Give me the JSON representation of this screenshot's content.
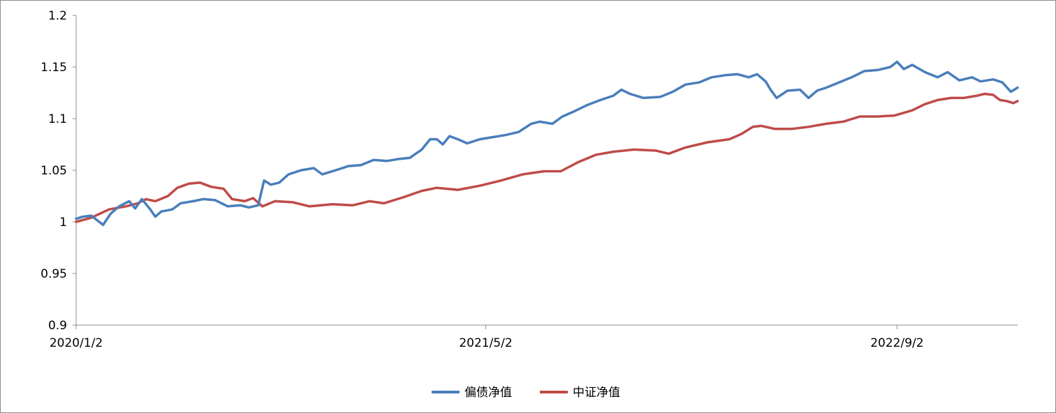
{
  "chart_data": {
    "type": "line",
    "title": "",
    "xlabel": "",
    "ylabel": "",
    "ylim": [
      0.9,
      1.2
    ],
    "y_ticks": [
      "1.2",
      "1.15",
      "1.1",
      "1.05",
      "1",
      "0.95",
      "0.9"
    ],
    "y_tick_values": [
      1.2,
      1.15,
      1.1,
      1.05,
      1.0,
      0.95,
      0.9
    ],
    "x_range": [
      "2020-01-02",
      "2023-01-23"
    ],
    "x_ticks": [
      "2020/1/2",
      "2021/5/2",
      "2022/9/2"
    ],
    "x_tick_dates": [
      "2020-01-02",
      "2021-05-02",
      "2022-09-02"
    ],
    "grid": false,
    "legend_position": "bottom-center",
    "series": [
      {
        "name": "偏债净值",
        "color": "#4a7ebb",
        "points": [
          [
            "2020-01-02",
            1.003
          ],
          [
            "2020-01-10",
            1.005
          ],
          [
            "2020-01-20",
            1.006
          ],
          [
            "2020-02-03",
            0.997
          ],
          [
            "2020-02-12",
            1.008
          ],
          [
            "2020-02-22",
            1.015
          ],
          [
            "2020-03-05",
            1.02
          ],
          [
            "2020-03-12",
            1.013
          ],
          [
            "2020-03-20",
            1.022
          ],
          [
            "2020-03-30",
            1.012
          ],
          [
            "2020-04-05",
            1.005
          ],
          [
            "2020-04-12",
            1.01
          ],
          [
            "2020-04-25",
            1.012
          ],
          [
            "2020-05-05",
            1.018
          ],
          [
            "2020-05-20",
            1.02
          ],
          [
            "2020-06-01",
            1.022
          ],
          [
            "2020-06-15",
            1.021
          ],
          [
            "2020-06-30",
            1.015
          ],
          [
            "2020-07-15",
            1.016
          ],
          [
            "2020-07-25",
            1.014
          ],
          [
            "2020-08-05",
            1.016
          ],
          [
            "2020-08-12",
            1.04
          ],
          [
            "2020-08-20",
            1.036
          ],
          [
            "2020-08-30",
            1.038
          ],
          [
            "2020-09-10",
            1.046
          ],
          [
            "2020-09-25",
            1.05
          ],
          [
            "2020-10-10",
            1.052
          ],
          [
            "2020-10-20",
            1.046
          ],
          [
            "2020-11-05",
            1.05
          ],
          [
            "2020-11-20",
            1.054
          ],
          [
            "2020-12-05",
            1.055
          ],
          [
            "2020-12-20",
            1.06
          ],
          [
            "2021-01-05",
            1.059
          ],
          [
            "2021-01-20",
            1.061
          ],
          [
            "2021-02-01",
            1.062
          ],
          [
            "2021-02-15",
            1.07
          ],
          [
            "2021-02-25",
            1.08
          ],
          [
            "2021-03-05",
            1.08
          ],
          [
            "2021-03-12",
            1.075
          ],
          [
            "2021-03-20",
            1.083
          ],
          [
            "2021-03-30",
            1.08
          ],
          [
            "2021-04-10",
            1.076
          ],
          [
            "2021-04-25",
            1.08
          ],
          [
            "2021-05-10",
            1.082
          ],
          [
            "2021-05-25",
            1.084
          ],
          [
            "2021-06-10",
            1.087
          ],
          [
            "2021-06-25",
            1.095
          ],
          [
            "2021-07-05",
            1.097
          ],
          [
            "2021-07-20",
            1.095
          ],
          [
            "2021-08-01",
            1.102
          ],
          [
            "2021-08-15",
            1.107
          ],
          [
            "2021-08-30",
            1.113
          ],
          [
            "2021-09-15",
            1.118
          ],
          [
            "2021-09-30",
            1.122
          ],
          [
            "2021-10-10",
            1.128
          ],
          [
            "2021-10-20",
            1.124
          ],
          [
            "2021-11-05",
            1.12
          ],
          [
            "2021-11-25",
            1.121
          ],
          [
            "2021-12-10",
            1.126
          ],
          [
            "2021-12-25",
            1.133
          ],
          [
            "2022-01-10",
            1.135
          ],
          [
            "2022-01-25",
            1.14
          ],
          [
            "2022-02-10",
            1.142
          ],
          [
            "2022-02-25",
            1.143
          ],
          [
            "2022-03-10",
            1.14
          ],
          [
            "2022-03-20",
            1.143
          ],
          [
            "2022-03-30",
            1.136
          ],
          [
            "2022-04-05",
            1.128
          ],
          [
            "2022-04-12",
            1.12
          ],
          [
            "2022-04-25",
            1.127
          ],
          [
            "2022-05-10",
            1.128
          ],
          [
            "2022-05-20",
            1.12
          ],
          [
            "2022-05-30",
            1.127
          ],
          [
            "2022-06-10",
            1.13
          ],
          [
            "2022-06-25",
            1.135
          ],
          [
            "2022-07-10",
            1.14
          ],
          [
            "2022-07-25",
            1.146
          ],
          [
            "2022-08-10",
            1.147
          ],
          [
            "2022-08-25",
            1.15
          ],
          [
            "2022-09-02",
            1.155
          ],
          [
            "2022-09-10",
            1.148
          ],
          [
            "2022-09-20",
            1.152
          ],
          [
            "2022-10-05",
            1.145
          ],
          [
            "2022-10-20",
            1.14
          ],
          [
            "2022-11-01",
            1.145
          ],
          [
            "2022-11-15",
            1.137
          ],
          [
            "2022-11-30",
            1.14
          ],
          [
            "2022-12-10",
            1.136
          ],
          [
            "2022-12-25",
            1.138
          ],
          [
            "2023-01-05",
            1.135
          ],
          [
            "2023-01-15",
            1.126
          ],
          [
            "2023-01-23",
            1.13
          ]
        ]
      },
      {
        "name": "中证净值",
        "color": "#be4b48",
        "points": [
          [
            "2020-01-02",
            1.0
          ],
          [
            "2020-01-20",
            1.004
          ],
          [
            "2020-02-10",
            1.012
          ],
          [
            "2020-03-01",
            1.015
          ],
          [
            "2020-03-15",
            1.018
          ],
          [
            "2020-03-25",
            1.022
          ],
          [
            "2020-04-05",
            1.02
          ],
          [
            "2020-04-20",
            1.025
          ],
          [
            "2020-05-01",
            1.033
          ],
          [
            "2020-05-15",
            1.037
          ],
          [
            "2020-05-28",
            1.038
          ],
          [
            "2020-06-10",
            1.034
          ],
          [
            "2020-06-25",
            1.032
          ],
          [
            "2020-07-05",
            1.022
          ],
          [
            "2020-07-20",
            1.02
          ],
          [
            "2020-07-30",
            1.023
          ],
          [
            "2020-08-10",
            1.015
          ],
          [
            "2020-08-25",
            1.02
          ],
          [
            "2020-09-15",
            1.019
          ],
          [
            "2020-10-05",
            1.015
          ],
          [
            "2020-11-01",
            1.017
          ],
          [
            "2020-11-25",
            1.016
          ],
          [
            "2020-12-15",
            1.02
          ],
          [
            "2021-01-01",
            1.018
          ],
          [
            "2021-01-25",
            1.024
          ],
          [
            "2021-02-15",
            1.03
          ],
          [
            "2021-03-05",
            1.033
          ],
          [
            "2021-03-30",
            1.031
          ],
          [
            "2021-04-25",
            1.035
          ],
          [
            "2021-05-20",
            1.04
          ],
          [
            "2021-06-15",
            1.046
          ],
          [
            "2021-07-10",
            1.049
          ],
          [
            "2021-07-30",
            1.049
          ],
          [
            "2021-08-20",
            1.058
          ],
          [
            "2021-09-10",
            1.065
          ],
          [
            "2021-10-01",
            1.068
          ],
          [
            "2021-10-25",
            1.07
          ],
          [
            "2021-11-20",
            1.069
          ],
          [
            "2021-12-05",
            1.066
          ],
          [
            "2021-12-25",
            1.072
          ],
          [
            "2022-01-20",
            1.077
          ],
          [
            "2022-02-15",
            1.08
          ],
          [
            "2022-03-01",
            1.085
          ],
          [
            "2022-03-15",
            1.092
          ],
          [
            "2022-03-25",
            1.093
          ],
          [
            "2022-04-10",
            1.09
          ],
          [
            "2022-04-30",
            1.09
          ],
          [
            "2022-05-20",
            1.092
          ],
          [
            "2022-06-10",
            1.095
          ],
          [
            "2022-06-30",
            1.097
          ],
          [
            "2022-07-20",
            1.102
          ],
          [
            "2022-08-10",
            1.102
          ],
          [
            "2022-08-30",
            1.103
          ],
          [
            "2022-09-20",
            1.108
          ],
          [
            "2022-10-05",
            1.114
          ],
          [
            "2022-10-20",
            1.118
          ],
          [
            "2022-11-05",
            1.12
          ],
          [
            "2022-11-20",
            1.12
          ],
          [
            "2022-12-05",
            1.122
          ],
          [
            "2022-12-15",
            1.124
          ],
          [
            "2022-12-25",
            1.123
          ],
          [
            "2023-01-02",
            1.118
          ],
          [
            "2023-01-10",
            1.117
          ],
          [
            "2023-01-18",
            1.115
          ],
          [
            "2023-01-23",
            1.117
          ]
        ]
      }
    ]
  }
}
